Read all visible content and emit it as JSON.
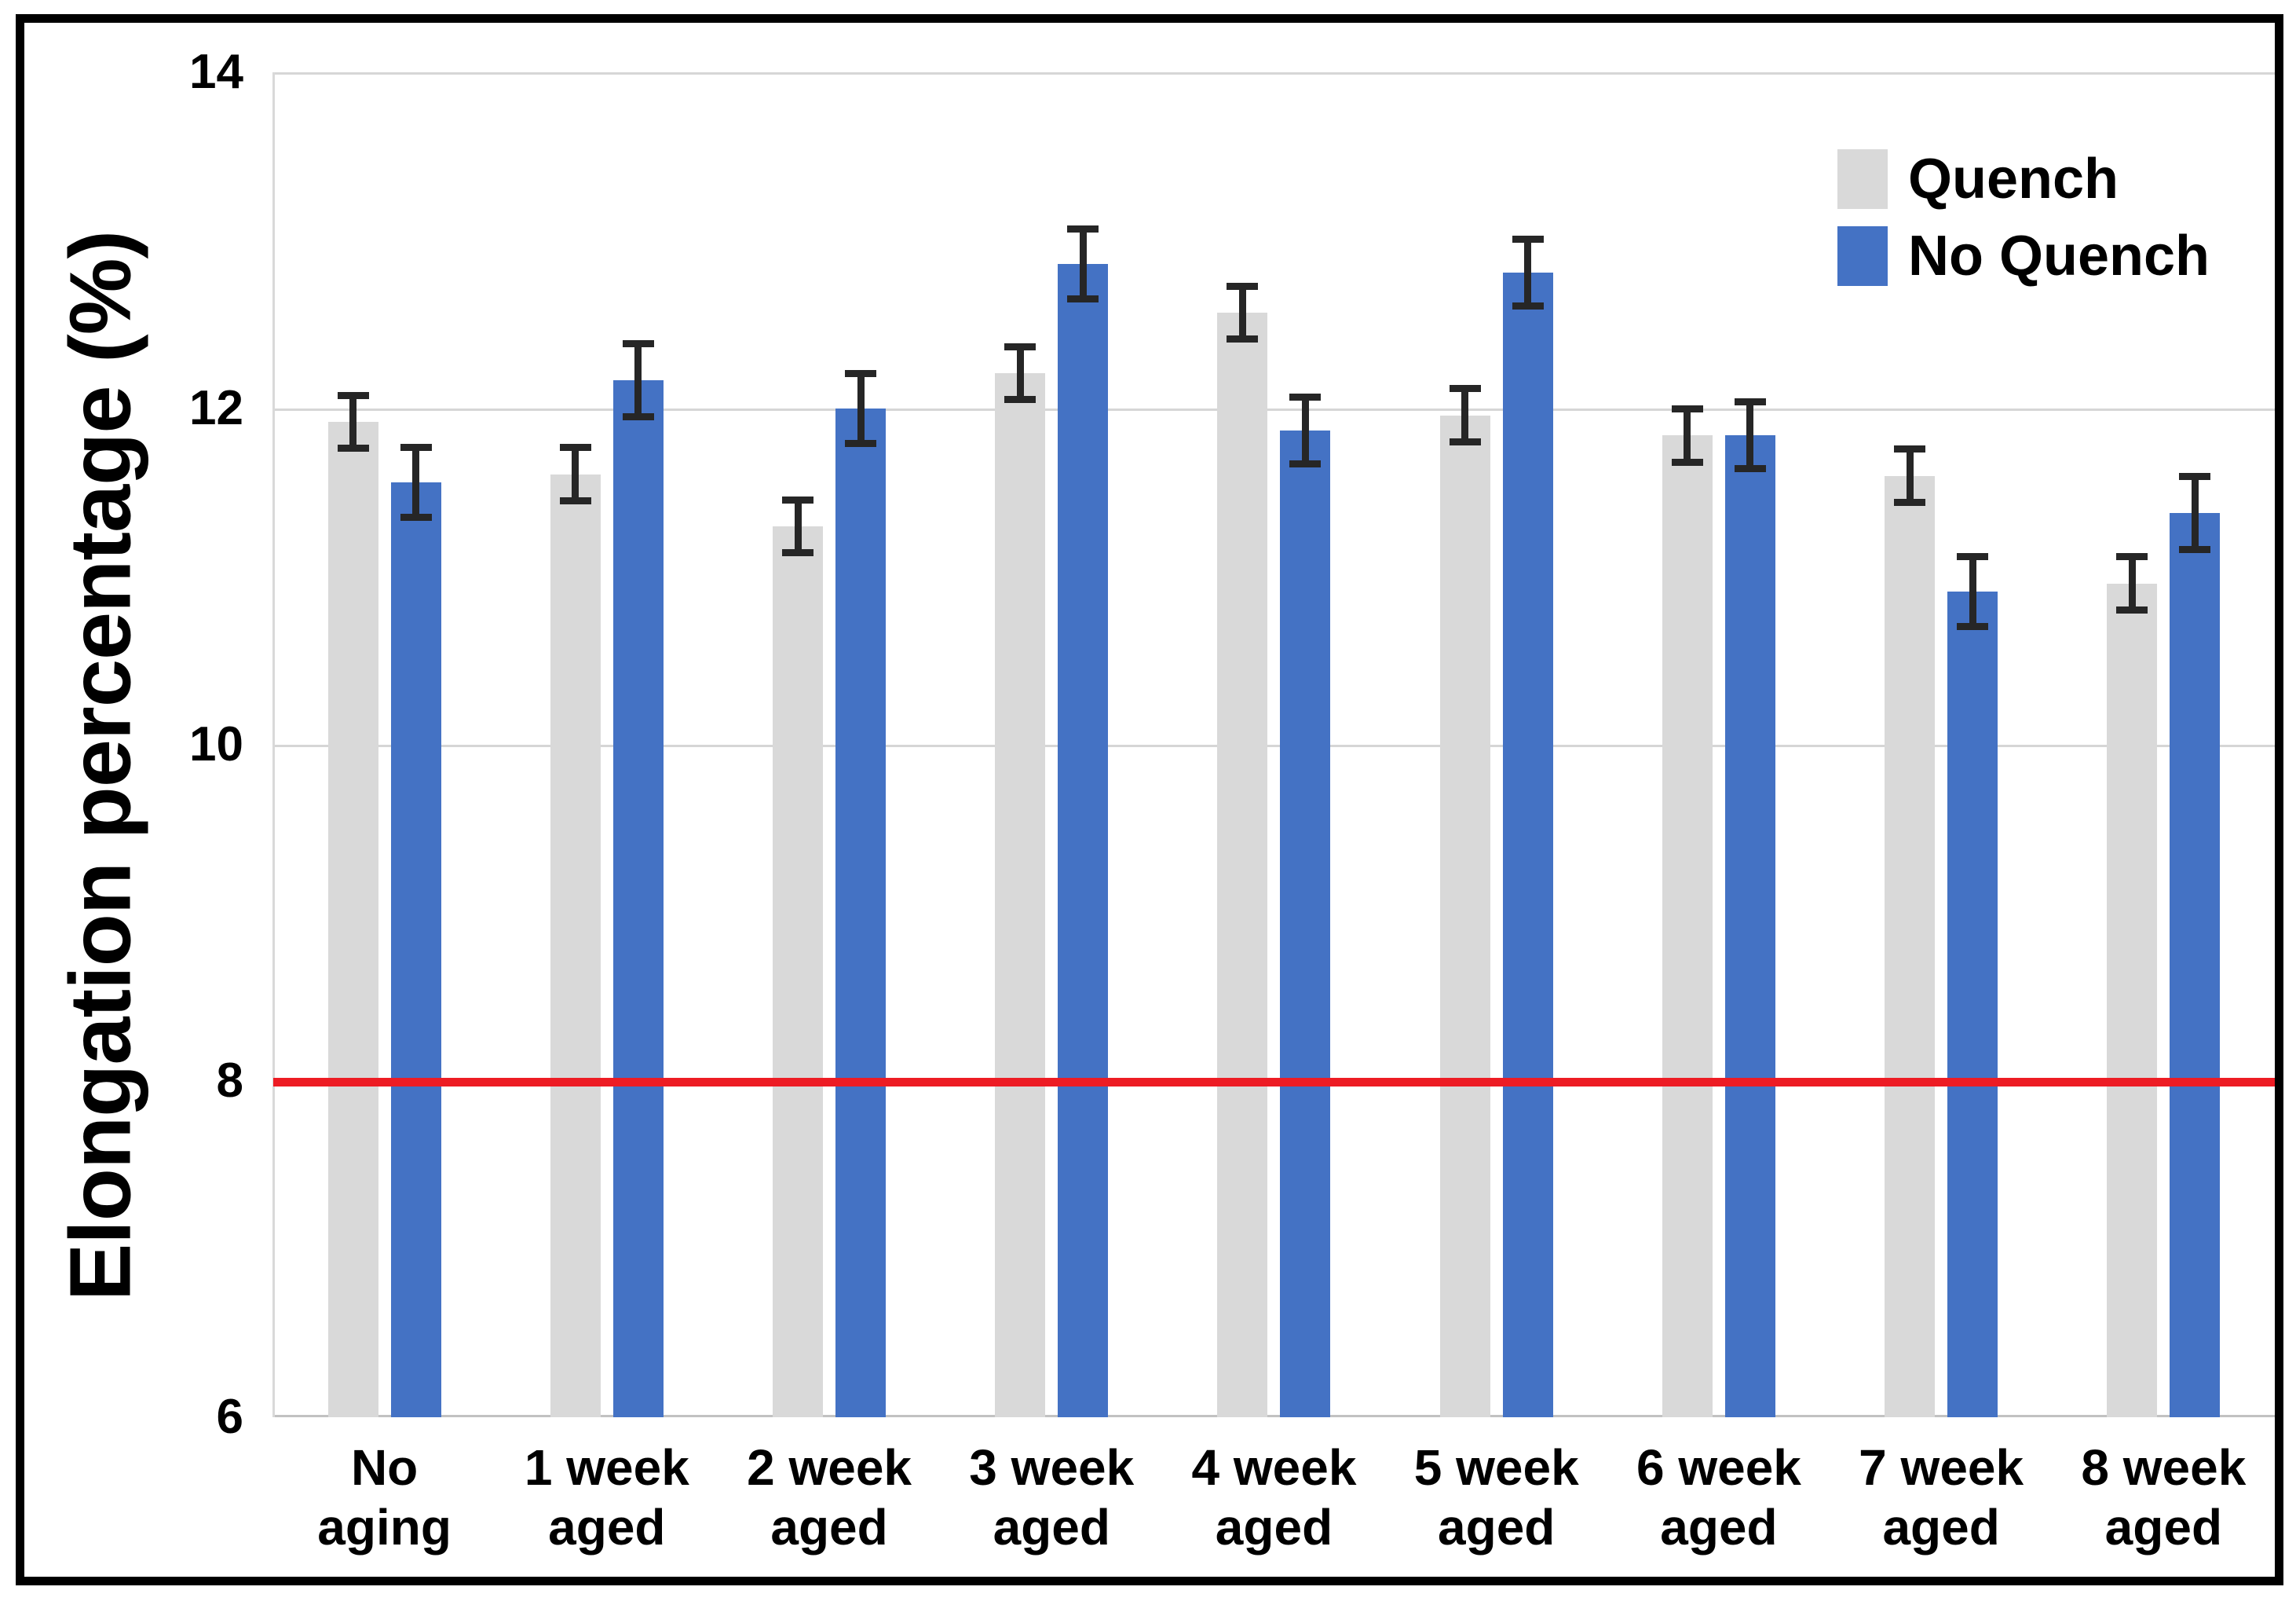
{
  "figure": {
    "background": "#ffffff",
    "border_color": "#000000"
  },
  "chart_data": {
    "type": "bar",
    "title": "",
    "xlabel": "",
    "ylabel": "Elongation percentage (%)",
    "ylim": [
      6,
      14
    ],
    "yticks": [
      6,
      8,
      10,
      12,
      14
    ],
    "grid": true,
    "legend_position": "top-right",
    "categories": [
      "No aging",
      "1 week aged",
      "2 week aged",
      "3 week aged",
      "4 week aged",
      "5 week aged",
      "6 week aged",
      "7 week aged",
      "8 week aged"
    ],
    "label_lines": [
      [
        "No",
        "aging"
      ],
      [
        "1 week",
        "aged"
      ],
      [
        "2 week",
        "aged"
      ],
      [
        "3 week",
        "aged"
      ],
      [
        "4 week",
        "aged"
      ],
      [
        "5 week",
        "aged"
      ],
      [
        "6 week",
        "aged"
      ],
      [
        "7 week",
        "aged"
      ],
      [
        "8 week",
        "aged"
      ]
    ],
    "series": [
      {
        "name": "Quench",
        "color": "#d9d9d9",
        "values": [
          11.92,
          11.61,
          11.3,
          12.21,
          12.57,
          11.96,
          11.84,
          11.6,
          10.96
        ],
        "errors": [
          0.16,
          0.16,
          0.16,
          0.16,
          0.16,
          0.16,
          0.16,
          0.16,
          0.16
        ]
      },
      {
        "name": "No Quench",
        "color": "#4472c4",
        "values": [
          11.56,
          12.17,
          12.0,
          12.86,
          11.87,
          12.81,
          11.84,
          10.91,
          11.38
        ],
        "errors": [
          0.21,
          0.22,
          0.21,
          0.21,
          0.2,
          0.2,
          0.2,
          0.21,
          0.22
        ]
      }
    ],
    "reference_line": {
      "value": 8,
      "color": "#ed1c24"
    },
    "error_bar_color": "#262626",
    "gridline_color": "#d6d6d6",
    "axis_line_color": "#c2c2c2"
  }
}
